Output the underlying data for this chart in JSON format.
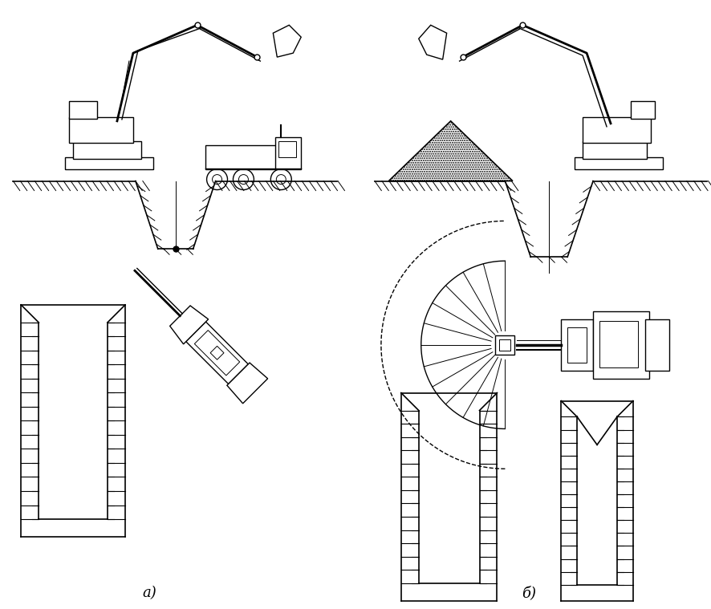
{
  "background_color": "#ffffff",
  "line_color": "#000000",
  "label_a": "а)",
  "label_b": "б)",
  "fig_width": 8.87,
  "fig_height": 7.59,
  "dpi": 100
}
